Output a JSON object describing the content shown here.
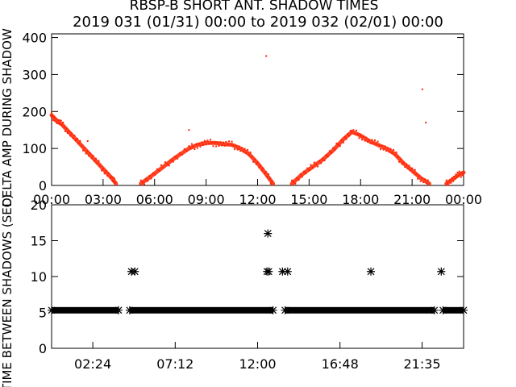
{
  "title": "RBSP-B SHORT ANT. SHADOW TIMES",
  "subtitle": "2019 031 (01/31) 00:00 to 2019 032 (02/01) 00:00",
  "chart_data": [
    {
      "type": "scatter",
      "ylabel": "DELTA AMP DURING SHADOW",
      "ylim": [
        0,
        410
      ],
      "xlim": [
        0,
        24
      ],
      "yticks": [
        "0",
        "100",
        "200",
        "300",
        "400"
      ],
      "xticks": [
        "00:00",
        "03:00",
        "06:00",
        "09:00",
        "12:00",
        "15:00",
        "18:00",
        "21:00",
        "00:00"
      ],
      "color": "#ff2200",
      "series": [
        {
          "x": [
            0,
            0.3,
            0.6,
            1.0,
            1.5,
            2.0,
            2.5,
            3.0,
            3.5,
            3.75
          ],
          "y": [
            190,
            175,
            165,
            145,
            120,
            95,
            70,
            45,
            20,
            5
          ]
        },
        {
          "x": [
            5.2,
            5.8,
            6.5,
            7.2,
            8.0,
            8.5,
            9.0,
            9.5,
            10.0,
            10.5,
            11.0,
            11.5,
            12.0,
            12.5,
            12.9
          ],
          "y": [
            5,
            25,
            50,
            75,
            100,
            110,
            115,
            115,
            112,
            110,
            100,
            85,
            60,
            30,
            5
          ]
        },
        {
          "x": [
            14.0,
            14.6,
            15.2,
            15.8,
            16.4,
            17.0,
            17.5,
            18.0,
            18.5,
            19.0,
            19.5,
            20.0,
            20.5,
            21.0,
            21.5,
            22.0
          ],
          "y": [
            5,
            30,
            50,
            70,
            95,
            125,
            145,
            135,
            120,
            110,
            100,
            85,
            60,
            40,
            20,
            5
          ]
        },
        {
          "x": [
            23.0,
            23.4,
            23.7,
            24.0
          ],
          "y": [
            5,
            18,
            28,
            35
          ]
        }
      ],
      "outliers": {
        "x": [
          2.1,
          12.5,
          21.6,
          21.8,
          8.0
        ],
        "y": [
          120,
          350,
          260,
          170,
          150
        ]
      }
    },
    {
      "type": "scatter",
      "ylabel": "TIME BETWEEN SHADOWS (SEC)",
      "ylim": [
        0,
        20
      ],
      "xlim": [
        0,
        24
      ],
      "yticks": [
        "0",
        "5",
        "10",
        "15",
        "20"
      ],
      "xticks": [
        "02:24",
        "07:12",
        "12:00",
        "16:48",
        "21:35"
      ],
      "xtick_hours": [
        2.4,
        7.2,
        12.0,
        16.8,
        21.583
      ],
      "marker": "*",
      "band": {
        "y": 5.3,
        "segments": [
          [
            0,
            3.9
          ],
          [
            4.55,
            12.9
          ],
          [
            13.6,
            22.3
          ],
          [
            22.8,
            24
          ]
        ]
      },
      "points": {
        "x": [
          4.65,
          4.85,
          12.55,
          12.65,
          13.45,
          13.75,
          12.6,
          18.6,
          22.7
        ],
        "y": [
          10.7,
          10.7,
          10.7,
          10.7,
          10.7,
          10.7,
          16.0,
          10.7,
          10.7
        ]
      }
    }
  ]
}
